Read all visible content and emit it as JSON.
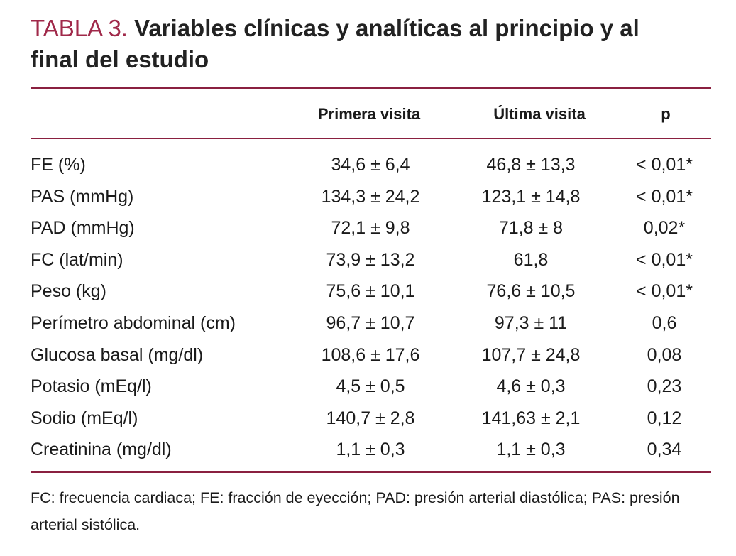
{
  "header": {
    "label": "TABLA 3.",
    "title": "Variables clínicas y analíticas al principio y al final del estudio"
  },
  "table": {
    "columns": [
      "Primera visita",
      "Última visita",
      "p"
    ],
    "rows": [
      [
        "FE (%)",
        "34,6 ± 6,4",
        "46,8 ± 13,3",
        "< 0,01*"
      ],
      [
        "PAS (mmHg)",
        "134,3 ± 24,2",
        "123,1 ± 14,8",
        "< 0,01*"
      ],
      [
        "PAD (mmHg)",
        "72,1 ± 9,8",
        "71,8 ± 8",
        "0,02*"
      ],
      [
        "FC (lat/min)",
        "73,9 ± 13,2",
        "61,8",
        "< 0,01*"
      ],
      [
        "Peso (kg)",
        "75,6 ± 10,1",
        "76,6 ± 10,5",
        "< 0,01*"
      ],
      [
        "Perímetro abdominal (cm)",
        "96,7 ± 10,7",
        "97,3 ± 11",
        "0,6"
      ],
      [
        "Glucosa basal (mg/dl)",
        "108,6 ± 17,6",
        "107,7 ± 24,8",
        "0,08"
      ],
      [
        "Potasio (mEq/l)",
        "4,5 ± 0,5",
        "4,6 ± 0,3",
        "0,23"
      ],
      [
        "Sodio (mEq/l)",
        "140,7 ± 2,8",
        "141,63 ± 2,1",
        "0,12"
      ],
      [
        "Creatinina (mg/dl)",
        "1,1 ± 0,3",
        "1,1 ± 0,3",
        "0,34"
      ]
    ]
  },
  "footnote": "FC: frecuencia cardiaca; FE: fracción de eyección; PAD: presión arterial diastólica; PAS: presión arterial sistólica."
}
